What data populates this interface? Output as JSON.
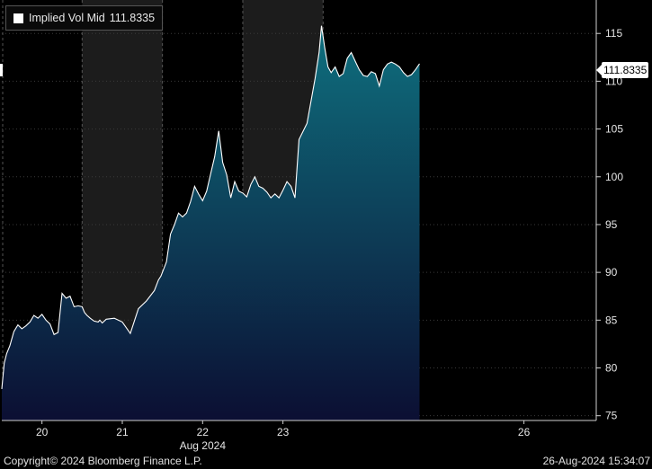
{
  "legend": {
    "label": "Implied Vol Mid",
    "value": "111.8335"
  },
  "last_value_label": "111.8335",
  "footer": {
    "copyright": "Copyright© 2024 Bloomberg Finance L.P.",
    "timestamp": "26-Aug-2024 15:34:07"
  },
  "colors": {
    "background": "#000000",
    "shade": "#1c1c1c",
    "line": "#ffffff",
    "fill_top": "#0e6f7e",
    "fill_bottom": "#0c0f33",
    "grid": "#3a3a3a"
  },
  "chart_data": {
    "type": "area",
    "title": "",
    "xlabel": "Aug 2024",
    "ylabel": "",
    "ylim": [
      74.5,
      118.5
    ],
    "xlim": [
      19.5,
      26.9
    ],
    "y_ticks": [
      75,
      80,
      85,
      90,
      95,
      100,
      105,
      110,
      115
    ],
    "x_ticks": [
      {
        "x": 20,
        "label": "20"
      },
      {
        "x": 21,
        "label": "21"
      },
      {
        "x": 22,
        "label": "22"
      },
      {
        "x": 23,
        "label": "23"
      },
      {
        "x": 26,
        "label": "26"
      }
    ],
    "shaded_ranges": [
      [
        20.5,
        21.5
      ],
      [
        22.5,
        23.5
      ]
    ],
    "grid": true,
    "series": [
      {
        "name": "Implied Vol Mid",
        "x": [
          19.5,
          19.53,
          19.56,
          19.6,
          19.65,
          19.7,
          19.75,
          19.8,
          19.85,
          19.9,
          19.95,
          20.0,
          20.05,
          20.1,
          20.15,
          20.2,
          20.25,
          20.3,
          20.35,
          20.4,
          20.45,
          20.5,
          20.53,
          20.56,
          20.6,
          20.65,
          20.7,
          20.72,
          20.75,
          20.8,
          20.9,
          21.0,
          21.1,
          21.2,
          21.3,
          21.4,
          21.45,
          21.48,
          21.5,
          21.55,
          21.6,
          21.65,
          21.7,
          21.75,
          21.8,
          21.85,
          21.9,
          21.95,
          22.0,
          22.05,
          22.1,
          22.15,
          22.2,
          22.25,
          22.3,
          22.35,
          22.4,
          22.45,
          22.5,
          22.55,
          22.6,
          22.65,
          22.7,
          22.75,
          22.8,
          22.85,
          22.9,
          22.95,
          23.0,
          23.05,
          23.1,
          23.15,
          23.2,
          23.3,
          23.4,
          23.45,
          23.48,
          23.52,
          23.56,
          23.6,
          23.65,
          23.7,
          23.75,
          23.8,
          23.85,
          23.9,
          23.95,
          24.0,
          24.05,
          24.1,
          24.15,
          24.2,
          24.25,
          24.3,
          24.35,
          24.4,
          24.45,
          24.5,
          24.55,
          24.6,
          24.65,
          24.7
        ],
        "values": [
          77.8,
          80.5,
          81.5,
          82.3,
          83.8,
          84.5,
          84.1,
          84.4,
          84.8,
          85.5,
          85.2,
          85.6,
          85.0,
          84.6,
          83.5,
          83.7,
          87.8,
          87.3,
          87.5,
          86.4,
          86.5,
          86.4,
          85.8,
          85.5,
          85.2,
          84.9,
          84.8,
          85.0,
          84.7,
          85.1,
          85.2,
          84.8,
          83.6,
          86.2,
          87.0,
          88.1,
          89.2,
          89.6,
          90.0,
          91.1,
          94.0,
          95.0,
          96.2,
          95.8,
          96.2,
          97.4,
          99.0,
          98.2,
          97.5,
          98.5,
          100.3,
          102.1,
          104.8,
          101.5,
          100.2,
          97.8,
          99.5,
          98.5,
          98.3,
          97.9,
          99.2,
          100.0,
          99.0,
          98.8,
          98.4,
          97.8,
          98.2,
          97.8,
          98.6,
          99.5,
          99.0,
          97.8,
          103.9,
          105.6,
          110.3,
          113.0,
          115.8,
          113.5,
          111.5,
          110.9,
          111.5,
          110.5,
          110.8,
          112.4,
          113.0,
          112.1,
          111.2,
          110.6,
          110.5,
          111.0,
          110.8,
          109.5,
          111.2,
          111.8,
          112.0,
          111.8,
          111.5,
          110.9,
          110.5,
          110.7,
          111.2,
          111.8335
        ]
      }
    ]
  }
}
